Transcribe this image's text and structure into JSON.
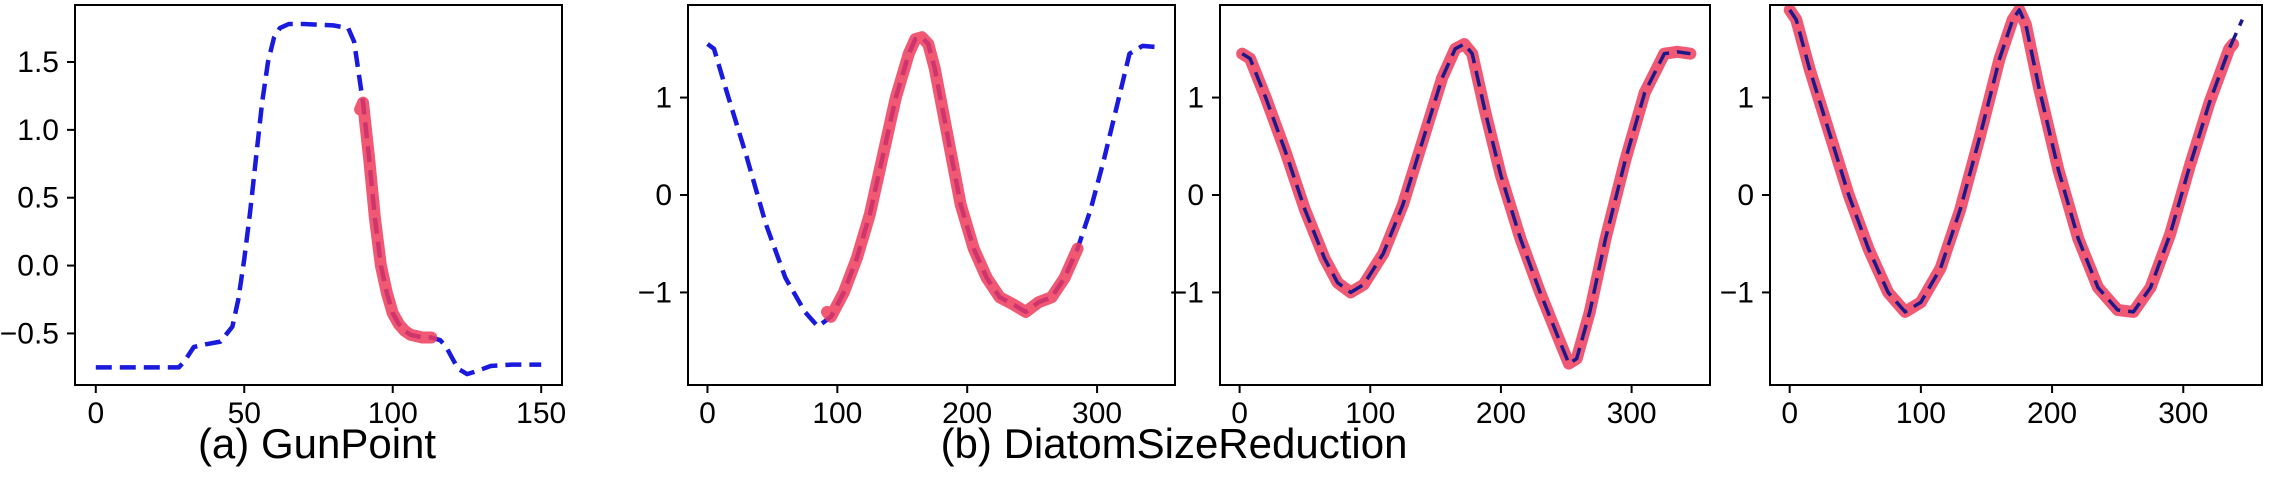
{
  "colors": {
    "series": "#1a1adf",
    "highlight": "#ee3b5a",
    "overlay": "#1a1a8a"
  },
  "captions": [
    "(a) GunPoint",
    "(b) DiatomSizeReduction"
  ],
  "chart_data": [
    {
      "type": "line",
      "xlim": [
        -7,
        157
      ],
      "ylim": [
        -0.88,
        1.92
      ],
      "xticks": [
        0,
        50,
        100,
        150
      ],
      "xtick_labels": [
        "0",
        "50",
        "100",
        "150"
      ],
      "yticks": [
        -0.5,
        0.0,
        0.5,
        1.0,
        1.5
      ],
      "ytick_labels": [
        "−0.5",
        "0.0",
        "0.5",
        "1.0",
        "1.5"
      ],
      "grid": false,
      "series": [
        {
          "style": "dashed-blue",
          "x": [
            0,
            10,
            20,
            28,
            30,
            33,
            37,
            42,
            46,
            48,
            50,
            52,
            54,
            56,
            58,
            60,
            62,
            65,
            70,
            80,
            85,
            87,
            88,
            90,
            92,
            94,
            96,
            98,
            100,
            102,
            104,
            106,
            108,
            110,
            113,
            116,
            118,
            120,
            122,
            125,
            128,
            133,
            140,
            150
          ],
          "y": [
            -0.75,
            -0.75,
            -0.75,
            -0.75,
            -0.7,
            -0.6,
            -0.58,
            -0.56,
            -0.45,
            -0.25,
            0.05,
            0.4,
            0.8,
            1.2,
            1.5,
            1.68,
            1.75,
            1.78,
            1.78,
            1.77,
            1.75,
            1.65,
            1.5,
            1.2,
            0.8,
            0.35,
            0.0,
            -0.2,
            -0.35,
            -0.43,
            -0.48,
            -0.51,
            -0.52,
            -0.53,
            -0.53,
            -0.55,
            -0.6,
            -0.68,
            -0.76,
            -0.8,
            -0.78,
            -0.74,
            -0.73,
            -0.73
          ]
        },
        {
          "style": "highlight",
          "x": [
            89,
            90,
            92,
            94,
            96,
            98,
            100,
            102,
            104,
            106,
            108,
            110,
            113
          ],
          "y": [
            1.15,
            1.2,
            0.8,
            0.35,
            0.0,
            -0.2,
            -0.35,
            -0.43,
            -0.48,
            -0.51,
            -0.52,
            -0.53,
            -0.53
          ]
        }
      ]
    },
    {
      "type": "line",
      "xlim": [
        -15,
        360
      ],
      "ylim": [
        -1.95,
        1.95
      ],
      "xticks": [
        0,
        100,
        200,
        300
      ],
      "xtick_labels": [
        "0",
        "100",
        "200",
        "300"
      ],
      "yticks": [
        -1,
        0,
        1
      ],
      "ytick_labels": [
        "−1",
        "0",
        "1"
      ],
      "grid": false,
      "series": [
        {
          "style": "dashed-blue",
          "x": [
            0,
            5,
            15,
            30,
            45,
            60,
            75,
            85,
            95,
            105,
            115,
            125,
            135,
            145,
            155,
            160,
            165,
            170,
            175,
            185,
            195,
            205,
            215,
            225,
            235,
            245,
            255,
            265,
            275,
            285,
            295,
            305,
            315,
            325,
            335,
            345
          ],
          "y": [
            1.55,
            1.5,
            1.05,
            0.4,
            -0.3,
            -0.85,
            -1.2,
            -1.35,
            -1.25,
            -1.0,
            -0.65,
            -0.2,
            0.4,
            1.0,
            1.45,
            1.6,
            1.62,
            1.55,
            1.3,
            0.6,
            -0.1,
            -0.55,
            -0.85,
            -1.05,
            -1.12,
            -1.2,
            -1.1,
            -1.05,
            -0.85,
            -0.55,
            -0.15,
            0.35,
            0.9,
            1.45,
            1.53,
            1.52
          ]
        },
        {
          "style": "highlight",
          "x": [
            92,
            95,
            105,
            115,
            125,
            135,
            145,
            155,
            160,
            165,
            170,
            175,
            185,
            195,
            205,
            215,
            225,
            235,
            245,
            255,
            265,
            275,
            285
          ],
          "y": [
            -1.2,
            -1.25,
            -1.0,
            -0.65,
            -0.2,
            0.4,
            1.0,
            1.45,
            1.6,
            1.62,
            1.55,
            1.3,
            0.6,
            -0.1,
            -0.55,
            -0.85,
            -1.05,
            -1.12,
            -1.2,
            -1.1,
            -1.05,
            -0.85,
            -0.55
          ]
        }
      ]
    },
    {
      "type": "line",
      "xlim": [
        -15,
        360
      ],
      "ylim": [
        -1.95,
        1.95
      ],
      "xticks": [
        0,
        100,
        200,
        300
      ],
      "xtick_labels": [
        "0",
        "100",
        "200",
        "300"
      ],
      "yticks": [
        -1,
        0,
        1
      ],
      "ytick_labels": [
        "−1",
        "0",
        "1"
      ],
      "grid": false,
      "series": [
        {
          "style": "highlight",
          "x": [
            2,
            8,
            20,
            35,
            50,
            65,
            75,
            85,
            95,
            110,
            125,
            140,
            155,
            165,
            172,
            178,
            188,
            200,
            215,
            230,
            245,
            252,
            258,
            268,
            280,
            295,
            310,
            325,
            335,
            345
          ],
          "y": [
            1.45,
            1.4,
            1.0,
            0.45,
            -0.15,
            -0.65,
            -0.9,
            -1.0,
            -0.92,
            -0.6,
            -0.1,
            0.55,
            1.2,
            1.5,
            1.55,
            1.45,
            0.85,
            0.2,
            -0.45,
            -1.0,
            -1.5,
            -1.73,
            -1.68,
            -1.2,
            -0.45,
            0.35,
            1.05,
            1.45,
            1.47,
            1.45
          ]
        },
        {
          "style": "overlay",
          "x": [
            2,
            8,
            20,
            35,
            50,
            65,
            75,
            85,
            95,
            110,
            125,
            140,
            155,
            165,
            172,
            178,
            188,
            200,
            215,
            230,
            245,
            252,
            258,
            268,
            280,
            295,
            310,
            325,
            335,
            345
          ],
          "y": [
            1.45,
            1.4,
            1.0,
            0.45,
            -0.15,
            -0.65,
            -0.9,
            -1.0,
            -0.92,
            -0.6,
            -0.1,
            0.55,
            1.2,
            1.5,
            1.55,
            1.45,
            0.85,
            0.2,
            -0.45,
            -1.0,
            -1.5,
            -1.73,
            -1.68,
            -1.2,
            -0.45,
            0.35,
            1.05,
            1.45,
            1.47,
            1.45
          ]
        }
      ]
    },
    {
      "type": "line",
      "xlim": [
        -15,
        360
      ],
      "ylim": [
        -1.95,
        1.95
      ],
      "xticks": [
        0,
        100,
        200,
        300
      ],
      "xtick_labels": [
        "0",
        "100",
        "200",
        "300"
      ],
      "yticks": [
        -1,
        0,
        1
      ],
      "ytick_labels": [
        "−1",
        "0",
        "1"
      ],
      "grid": false,
      "series": [
        {
          "style": "highlight",
          "x": [
            0,
            5,
            15,
            30,
            45,
            60,
            75,
            88,
            100,
            115,
            130,
            145,
            160,
            170,
            175,
            180,
            190,
            205,
            220,
            235,
            250,
            262,
            275,
            290,
            305,
            320,
            335,
            338
          ],
          "y": [
            1.9,
            1.8,
            1.3,
            0.65,
            0.0,
            -0.55,
            -1.0,
            -1.2,
            -1.1,
            -0.75,
            -0.15,
            0.6,
            1.4,
            1.8,
            1.9,
            1.75,
            1.1,
            0.25,
            -0.45,
            -0.95,
            -1.18,
            -1.2,
            -0.95,
            -0.4,
            0.3,
            0.95,
            1.5,
            1.55
          ]
        },
        {
          "style": "overlay",
          "x": [
            0,
            5,
            15,
            30,
            45,
            60,
            75,
            88,
            100,
            115,
            130,
            145,
            160,
            170,
            175,
            180,
            190,
            205,
            220,
            235,
            250,
            262,
            275,
            290,
            305,
            320,
            335,
            345
          ],
          "y": [
            1.9,
            1.8,
            1.3,
            0.65,
            0.0,
            -0.55,
            -1.0,
            -1.2,
            -1.1,
            -0.75,
            -0.15,
            0.6,
            1.4,
            1.8,
            1.9,
            1.75,
            1.1,
            0.25,
            -0.45,
            -0.95,
            -1.18,
            -1.2,
            -0.95,
            -0.4,
            0.3,
            0.95,
            1.5,
            1.8
          ]
        }
      ]
    }
  ]
}
